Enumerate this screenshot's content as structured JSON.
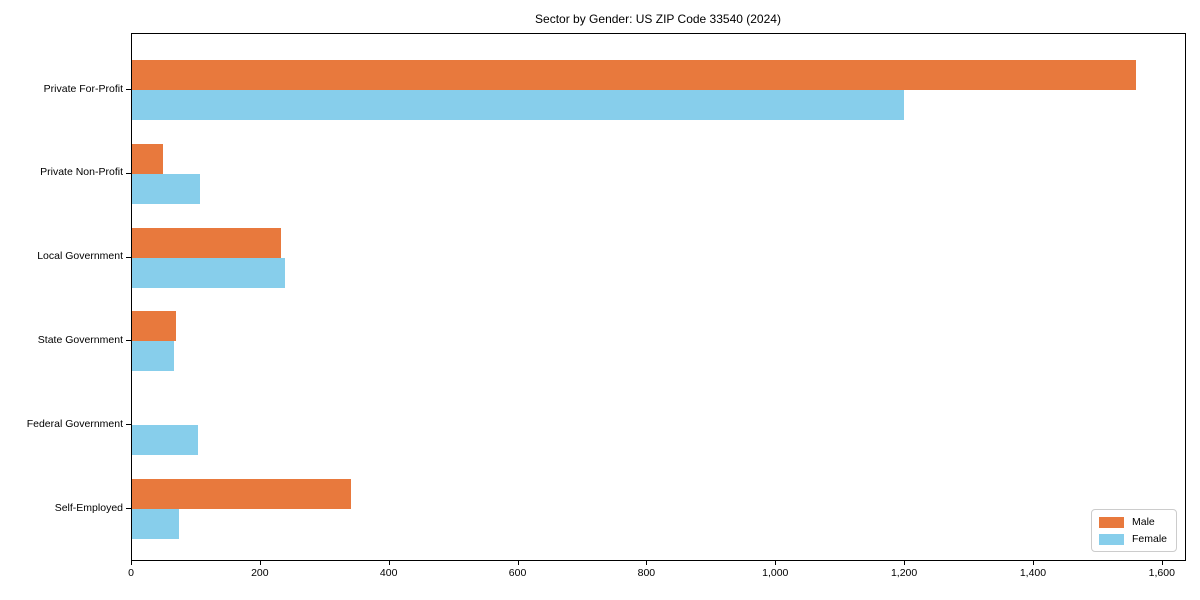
{
  "chart_data": {
    "type": "bar",
    "orientation": "horizontal",
    "title": "Sector by Gender: US ZIP Code 33540 (2024)",
    "categories": [
      "Private For-Profit",
      "Private Non-Profit",
      "Local Government",
      "State Government",
      "Federal Government",
      "Self-Employed"
    ],
    "series": [
      {
        "name": "Male",
        "color": "#e8793d",
        "values": [
          1560,
          48,
          232,
          68,
          0,
          340
        ]
      },
      {
        "name": "Female",
        "color": "#87ceeb",
        "values": [
          1200,
          105,
          238,
          65,
          103,
          73
        ]
      }
    ],
    "xlim": [
      0,
      1600
    ],
    "xticks": [
      0,
      200,
      400,
      600,
      800,
      1000,
      1200,
      1400,
      1600
    ],
    "xtick_labels": [
      "0",
      "200",
      "400",
      "600",
      "800",
      "1,000",
      "1,200",
      "1,400",
      "1,600"
    ],
    "ylabel": "",
    "xlabel": "",
    "grid": false,
    "legend": {
      "position": "lower right",
      "entries": [
        "Male",
        "Female"
      ]
    }
  }
}
